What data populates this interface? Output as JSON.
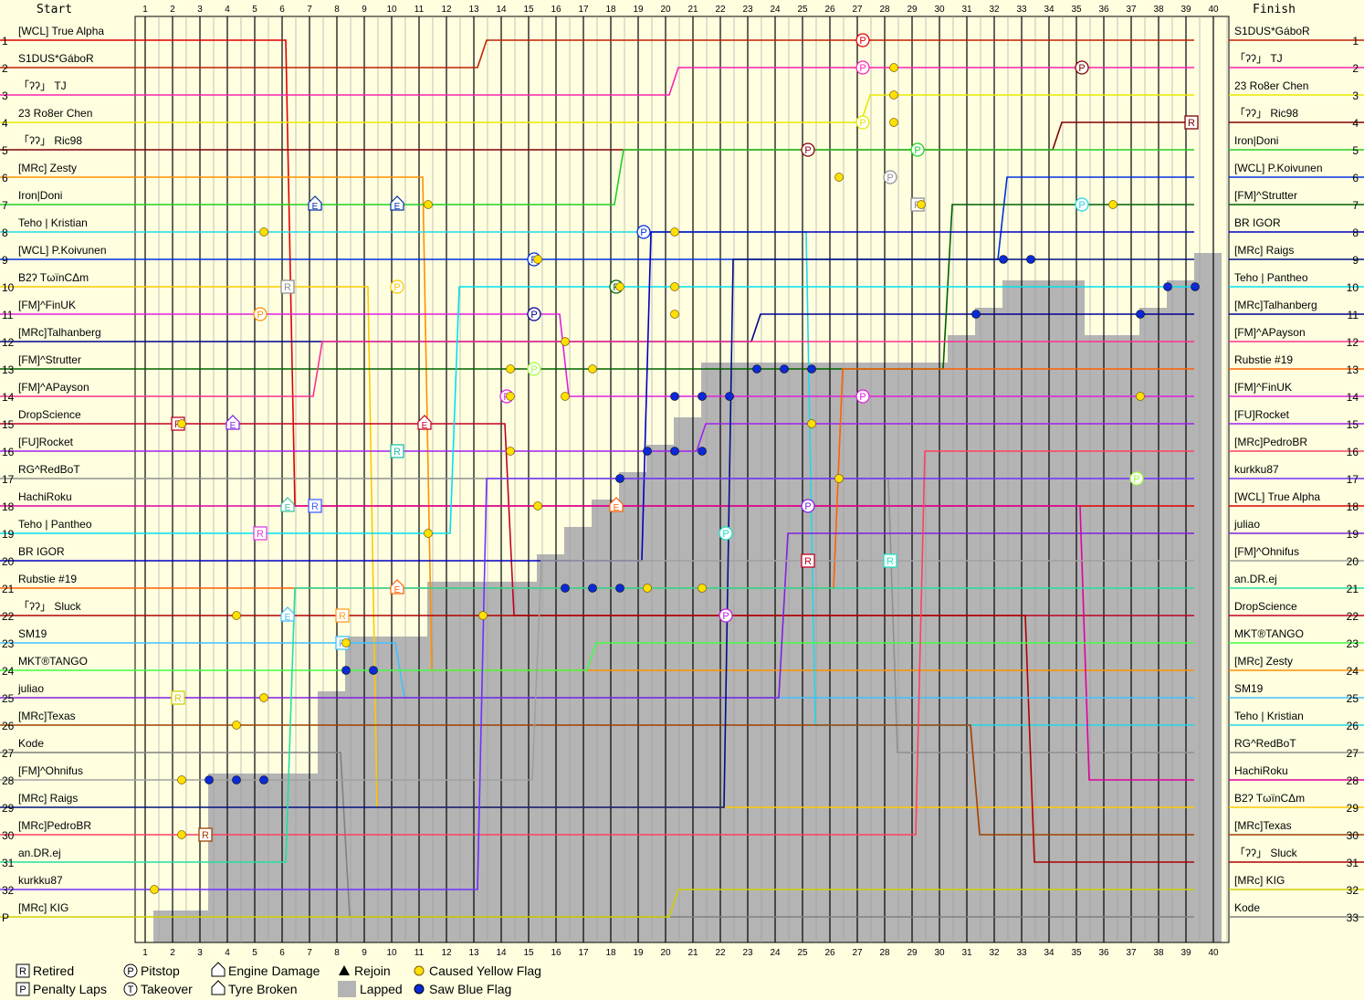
{
  "chart_data": {
    "type": "line",
    "start_label": "Start",
    "finish_label": "Finish",
    "lap_ticks": [
      "1",
      "2",
      "3",
      "4",
      "5",
      "6",
      "7",
      "8",
      "9",
      "10",
      "11",
      "12",
      "13",
      "14",
      "15",
      "16",
      "17",
      "18",
      "19",
      "20",
      "21",
      "22",
      "23",
      "24",
      "25",
      "26",
      "27",
      "28",
      "29",
      "30",
      "31",
      "32",
      "33",
      "34",
      "35",
      "36",
      "37",
      "38",
      "39",
      "40"
    ],
    "start_positions": [
      "1",
      "2",
      "3",
      "4",
      "5",
      "6",
      "7",
      "8",
      "9",
      "10",
      "11",
      "12",
      "13",
      "14",
      "15",
      "16",
      "17",
      "18",
      "19",
      "20",
      "21",
      "22",
      "23",
      "24",
      "25",
      "26",
      "27",
      "28",
      "29",
      "30",
      "31",
      "32",
      "P"
    ],
    "finish_positions": [
      "1",
      "2",
      "3",
      "4",
      "5",
      "6",
      "7",
      "8",
      "9",
      "10",
      "11",
      "12",
      "13",
      "14",
      "15",
      "16",
      "17",
      "18",
      "19",
      "20",
      "21",
      "22",
      "23",
      "24",
      "25",
      "26",
      "27",
      "28",
      "29",
      "30",
      "31",
      "32",
      "33"
    ],
    "start_grid": [
      "[WCL] True Alpha",
      "S1DUS*GáboR",
      "「ʔʔ」 TJ",
      "23 Ro8er Chen",
      "「ʔʔ」 Ric98",
      "[MRc] Zesty",
      "Iron|Doni",
      "Teho | Kristian",
      "[WCL] P.Koivunen",
      "B2ʔ TωïnCΔm",
      "[FM]^FinUK",
      "[MRc]Talhanberg",
      "[FM]^Strutter",
      "[FM]^APayson",
      "DropScience",
      "[FU]Rocket",
      "RG^RedBoT",
      "HachiRoku",
      "Teho | Pantheo",
      "BR IGOR",
      "Rubstie #19",
      "「ʔʔ」 Sluck",
      "SM19",
      "MKT®TANGO",
      "juliao",
      "[MRc]Texas",
      "Kode",
      "[FM]^Ohnifus",
      "[MRc] Raigs",
      "[MRc]PedroBR",
      "an.DR.ej",
      "kurkku87",
      "[MRc] KIG"
    ],
    "finish_order": [
      "S1DUS*GáboR",
      "「ʔʔ」 TJ",
      "23 Ro8er Chen",
      "「ʔʔ」 Ric98",
      "Iron|Doni",
      "[WCL] P.Koivunen",
      "[FM]^Strutter",
      "BR IGOR",
      "[MRc] Raigs",
      "Teho | Pantheo",
      "[MRc]Talhanberg",
      "[FM]^APayson",
      "Rubstie #19",
      "[FM]^FinUK",
      "[FU]Rocket",
      "[MRc]PedroBR",
      "kurkku87",
      "[WCL] True Alpha",
      "juliao",
      "[FM]^Ohnifus",
      "an.DR.ej",
      "DropScience",
      "MKT®TANGO",
      "[MRc] Zesty",
      "SM19",
      "Teho | Kristian",
      "RG^RedBoT",
      "HachiRoku",
      "B2ʔ TωïnCΔm",
      "[MRc]Texas",
      "「ʔʔ」 Sluck",
      "[MRc] KIG",
      "Kode"
    ],
    "colors": [
      "#e00000",
      "#c02000",
      "#ff20b0",
      "#e8e800",
      "#800000",
      "#ff9000",
      "#20d020",
      "#20d8e8",
      "#0030e0",
      "#ffc800",
      "#e020e0",
      "#000090",
      "#006000",
      "#ff3090",
      "#c00020",
      "#a020f0",
      "#909090",
      "#e000a0",
      "#00e0f0",
      "#0000c0",
      "#ff6000",
      "#b00000",
      "#40c0ff",
      "#40ff40",
      "#8020e0",
      "#a04000",
      "#808080",
      "#a0a0a0",
      "#001080",
      "#ff4060",
      "#20e0a0",
      "#7030ff",
      "#d0d000"
    ],
    "events": [
      {
        "lap": 27,
        "pos": 1,
        "type": "P",
        "color": "#e00000"
      },
      {
        "lap": 27,
        "pos": 2,
        "type": "P",
        "color": "#ff20b0"
      },
      {
        "lap": 27,
        "pos": 4,
        "type": "P",
        "color": "#e8e800"
      },
      {
        "lap": 35,
        "pos": 2,
        "type": "P",
        "color": "#800000"
      },
      {
        "lap": 25,
        "pos": 5,
        "type": "P",
        "color": "#800000"
      },
      {
        "lap": 29,
        "pos": 5,
        "type": "P",
        "color": "#20d020"
      },
      {
        "lap": 28,
        "pos": 6,
        "type": "P",
        "color": "#909090"
      },
      {
        "lap": 35,
        "pos": 7,
        "type": "P",
        "color": "#20d8e8"
      },
      {
        "lap": 19,
        "pos": 8,
        "type": "P",
        "color": "#0030e0"
      },
      {
        "lap": 15,
        "pos": 9,
        "type": "P",
        "color": "#0030e0"
      },
      {
        "lap": 18,
        "pos": 10,
        "type": "P",
        "color": "#006000"
      },
      {
        "lap": 15,
        "pos": 11,
        "type": "P",
        "color": "#000090"
      },
      {
        "lap": 15,
        "pos": 13,
        "type": "P",
        "color": "#a0ff40"
      },
      {
        "lap": 14,
        "pos": 14,
        "type": "P",
        "color": "#e020e0"
      },
      {
        "lap": 27,
        "pos": 14,
        "type": "P",
        "color": "#e020e0"
      },
      {
        "lap": 25,
        "pos": 18,
        "type": "P",
        "color": "#8020e0"
      },
      {
        "lap": 37,
        "pos": 17,
        "type": "P",
        "color": "#a0ff40"
      },
      {
        "lap": 22,
        "pos": 19,
        "type": "P",
        "color": "#20e0c0"
      },
      {
        "lap": 22,
        "pos": 22,
        "type": "P",
        "color": "#c020e0"
      },
      {
        "lap": 10,
        "pos": 10,
        "type": "P",
        "color": "#ffc800"
      },
      {
        "lap": 5,
        "pos": 11,
        "type": "P",
        "color": "#ff9000"
      },
      {
        "lap": 7,
        "pos": 7,
        "type": "E",
        "color": "#0030a0"
      },
      {
        "lap": 10,
        "pos": 7,
        "type": "E",
        "color": "#0030a0"
      },
      {
        "lap": 4,
        "pos": 15,
        "type": "E",
        "color": "#8020e0"
      },
      {
        "lap": 11,
        "pos": 15,
        "type": "E",
        "color": "#c00020"
      },
      {
        "lap": 18,
        "pos": 18,
        "type": "E",
        "color": "#ff6000"
      },
      {
        "lap": 10,
        "pos": 21,
        "type": "E",
        "color": "#ff6000"
      },
      {
        "lap": 6,
        "pos": 18,
        "type": "E",
        "color": "#40c0a0"
      },
      {
        "lap": 6,
        "pos": 22,
        "type": "E",
        "color": "#40c0ff"
      },
      {
        "lap": 6,
        "pos": 10,
        "type": "R",
        "color": "#909090"
      },
      {
        "lap": 2,
        "pos": 15,
        "type": "R",
        "color": "#c00020"
      },
      {
        "lap": 10,
        "pos": 16,
        "type": "R",
        "color": "#20c0a0"
      },
      {
        "lap": 7,
        "pos": 18,
        "type": "R",
        "color": "#4060ff"
      },
      {
        "lap": 5,
        "pos": 19,
        "type": "R",
        "color": "#e040e0"
      },
      {
        "lap": 8,
        "pos": 22,
        "type": "R",
        "color": "#ffa020"
      },
      {
        "lap": 8,
        "pos": 23,
        "type": "R",
        "color": "#40c0ff"
      },
      {
        "lap": 2,
        "pos": 25,
        "type": "R",
        "color": "#d0d000"
      },
      {
        "lap": 3,
        "pos": 30,
        "type": "R",
        "color": "#a04000"
      },
      {
        "lap": 29,
        "pos": 7,
        "type": "R",
        "color": "#909090"
      },
      {
        "lap": 28,
        "pos": 20,
        "type": "R",
        "color": "#20e0c0"
      },
      {
        "lap": 25,
        "pos": 20,
        "type": "R",
        "color": "#c00020"
      },
      {
        "lap": 39,
        "pos": 4,
        "type": "R",
        "color": "#800000"
      }
    ],
    "legend": [
      {
        "symbol": "R",
        "text": "Retired"
      },
      {
        "symbol": "P",
        "text": "Pitstop"
      },
      {
        "symbol": "E",
        "text": "Engine Damage"
      },
      {
        "symbol": "triangle",
        "text": "Rejoin"
      },
      {
        "symbol": "yellow-dot",
        "text": "Caused Yellow Flag"
      },
      {
        "symbol": "P-square",
        "text": "Penalty Laps"
      },
      {
        "symbol": "T",
        "text": "Takeover"
      },
      {
        "symbol": "tyre",
        "text": "Tyre Broken"
      },
      {
        "symbol": "lapped",
        "text": "Lapped"
      },
      {
        "symbol": "blue-dot",
        "text": "Saw Blue Flag"
      }
    ],
    "grid": true
  }
}
